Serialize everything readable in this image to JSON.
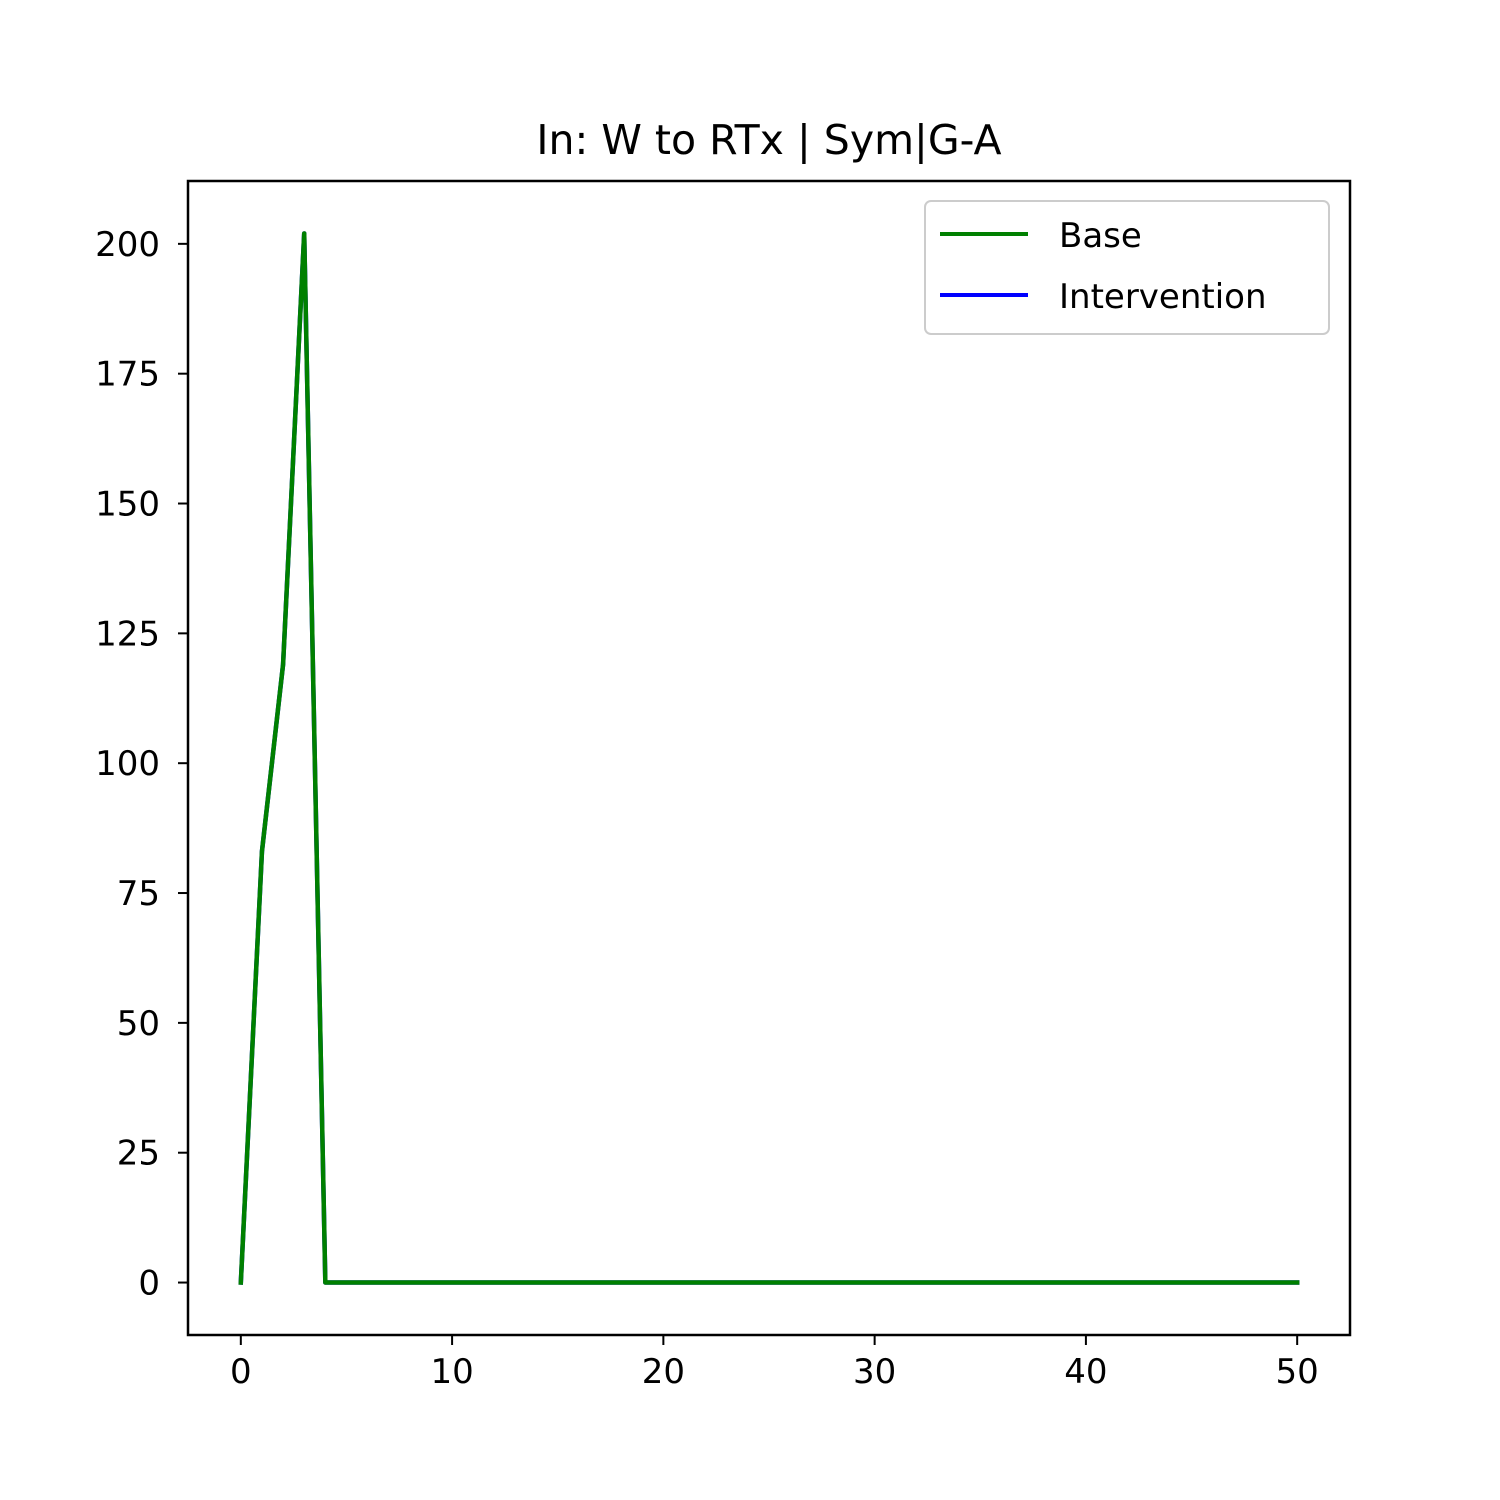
{
  "chart_data": {
    "type": "line",
    "title": "In: W to RTx | Sym|G-A",
    "xlabel": "",
    "ylabel": "",
    "xlim": [
      -2.5,
      52.5
    ],
    "ylim": [
      -10.1,
      212.1
    ],
    "xticks": [
      0,
      10,
      20,
      30,
      40,
      50
    ],
    "yticks": [
      0,
      25,
      50,
      75,
      100,
      125,
      150,
      175,
      200
    ],
    "grid": false,
    "legend_position": "top-right",
    "series": [
      {
        "name": "Intervention",
        "color": "#0000ff",
        "x": [
          0,
          1,
          2,
          3,
          4,
          5,
          6,
          7,
          8,
          9,
          10,
          11,
          12,
          13,
          14,
          15,
          16,
          17,
          18,
          19,
          20,
          21,
          22,
          23,
          24,
          25,
          26,
          27,
          28,
          29,
          30,
          31,
          32,
          33,
          34,
          35,
          36,
          37,
          38,
          39,
          40,
          41,
          42,
          43,
          44,
          45,
          46,
          47,
          48,
          49,
          50
        ],
        "values": [
          0,
          83,
          119,
          202,
          0,
          0,
          0,
          0,
          0,
          0,
          0,
          0,
          0,
          0,
          0,
          0,
          0,
          0,
          0,
          0,
          0,
          0,
          0,
          0,
          0,
          0,
          0,
          0,
          0,
          0,
          0,
          0,
          0,
          0,
          0,
          0,
          0,
          0,
          0,
          0,
          0,
          0,
          0,
          0,
          0,
          0,
          0,
          0,
          0,
          0,
          0
        ]
      },
      {
        "name": "Base",
        "color": "#008000",
        "x": [
          0,
          1,
          2,
          3,
          4,
          5,
          6,
          7,
          8,
          9,
          10,
          11,
          12,
          13,
          14,
          15,
          16,
          17,
          18,
          19,
          20,
          21,
          22,
          23,
          24,
          25,
          26,
          27,
          28,
          29,
          30,
          31,
          32,
          33,
          34,
          35,
          36,
          37,
          38,
          39,
          40,
          41,
          42,
          43,
          44,
          45,
          46,
          47,
          48,
          49,
          50
        ],
        "values": [
          0,
          83,
          119,
          202,
          0,
          0,
          0,
          0,
          0,
          0,
          0,
          0,
          0,
          0,
          0,
          0,
          0,
          0,
          0,
          0,
          0,
          0,
          0,
          0,
          0,
          0,
          0,
          0,
          0,
          0,
          0,
          0,
          0,
          0,
          0,
          0,
          0,
          0,
          0,
          0,
          0,
          0,
          0,
          0,
          0,
          0,
          0,
          0,
          0,
          0,
          0
        ]
      }
    ],
    "legend": [
      "Base",
      "Intervention"
    ]
  }
}
